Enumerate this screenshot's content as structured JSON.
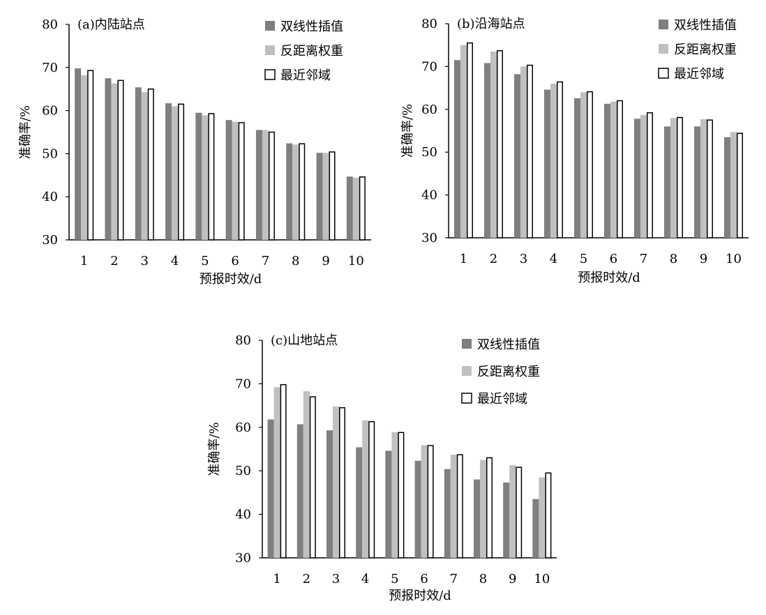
{
  "chart_data": [
    {
      "type": "bar",
      "title": "(a)内陆站点",
      "xlabel": "预报时效/d",
      "ylabel": "准确率/%",
      "ylim": [
        30,
        80
      ],
      "yticks": [
        "30",
        "40",
        "50",
        "60",
        "70",
        "80"
      ],
      "categories": [
        "1",
        "2",
        "3",
        "4",
        "5",
        "6",
        "7",
        "8",
        "9",
        "10"
      ],
      "legend_position": "top-right",
      "series": [
        {
          "name": "双线性插值",
          "color": "#7f7f7f",
          "values": [
            69.8,
            67.5,
            65.4,
            61.7,
            59.5,
            57.8,
            55.5,
            52.4,
            50.2,
            44.7
          ]
        },
        {
          "name": "反距离权重",
          "color": "#c0c0c0",
          "values": [
            68.2,
            66.3,
            64.3,
            61.0,
            58.9,
            57.4,
            55.5,
            52.1,
            50.2,
            44.4
          ]
        },
        {
          "name": "最近邻域",
          "color": "#ffffff",
          "values": [
            69.3,
            67.0,
            65.0,
            61.5,
            59.3,
            57.2,
            55.0,
            52.3,
            50.4,
            44.6
          ]
        }
      ]
    },
    {
      "type": "bar",
      "title": "(b)沿海站点",
      "xlabel": "预报时效/d",
      "ylabel": "准确率/%",
      "ylim": [
        30,
        80
      ],
      "yticks": [
        "30",
        "40",
        "50",
        "60",
        "70",
        "80"
      ],
      "categories": [
        "1",
        "2",
        "3",
        "4",
        "5",
        "6",
        "7",
        "8",
        "9",
        "10"
      ],
      "legend_position": "top-right",
      "series": [
        {
          "name": "双线性插值",
          "color": "#7f7f7f",
          "values": [
            71.5,
            70.8,
            68.2,
            64.6,
            62.6,
            61.3,
            57.8,
            56.0,
            56.0,
            53.5
          ]
        },
        {
          "name": "反距离权重",
          "color": "#c0c0c0",
          "values": [
            75.0,
            73.5,
            70.0,
            66.0,
            64.0,
            61.8,
            58.7,
            58.0,
            57.7,
            54.7
          ]
        },
        {
          "name": "最近邻域",
          "color": "#ffffff",
          "values": [
            75.5,
            73.7,
            70.3,
            66.4,
            64.1,
            62.0,
            59.2,
            58.1,
            57.5,
            54.4
          ]
        }
      ]
    },
    {
      "type": "bar",
      "title": "(c)山地站点",
      "xlabel": "预报时效/d",
      "ylabel": "准确率/%",
      "ylim": [
        30,
        80
      ],
      "yticks": [
        "30",
        "40",
        "50",
        "60",
        "70",
        "80"
      ],
      "categories": [
        "1",
        "2",
        "3",
        "4",
        "5",
        "6",
        "7",
        "8",
        "9",
        "10"
      ],
      "legend_position": "top-right",
      "series": [
        {
          "name": "双线性插值",
          "color": "#7f7f7f",
          "values": [
            61.8,
            60.7,
            59.3,
            55.4,
            54.6,
            52.3,
            50.4,
            48.0,
            47.3,
            43.5
          ]
        },
        {
          "name": "反距离权重",
          "color": "#c0c0c0",
          "values": [
            69.2,
            68.3,
            64.8,
            61.6,
            58.9,
            55.9,
            53.7,
            52.5,
            51.3,
            48.5
          ]
        },
        {
          "name": "最近邻域",
          "color": "#ffffff",
          "values": [
            69.8,
            67.0,
            64.5,
            61.3,
            58.8,
            55.8,
            53.7,
            53.0,
            50.8,
            49.5
          ]
        }
      ]
    }
  ]
}
